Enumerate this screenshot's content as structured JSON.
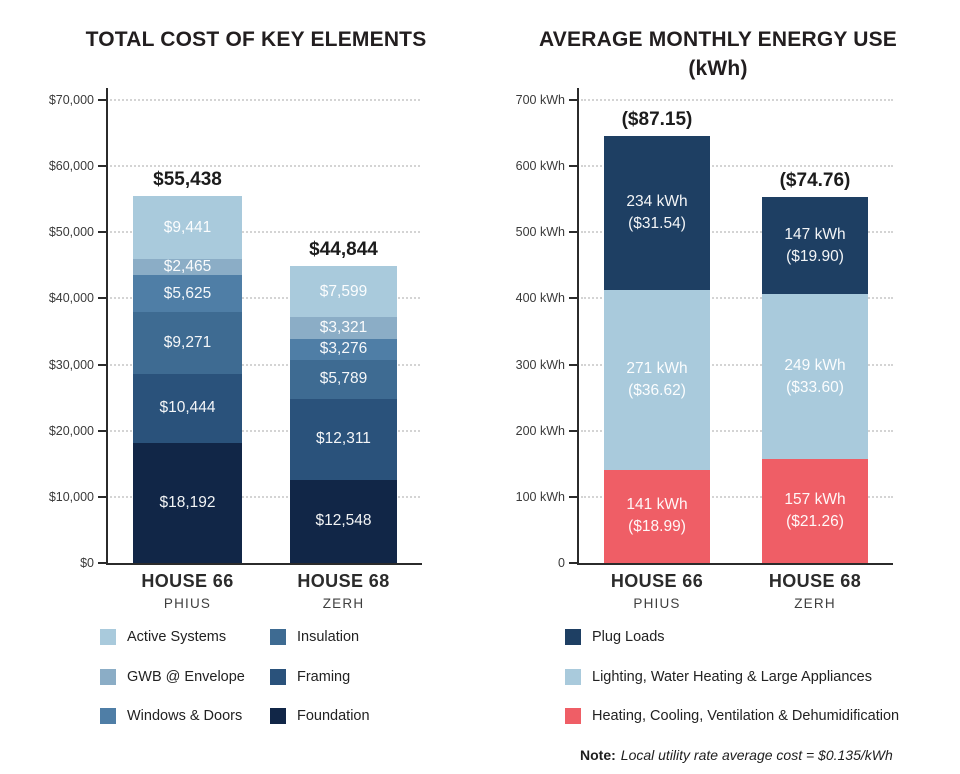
{
  "chart_data": [
    {
      "type": "bar",
      "stacked": true,
      "title": "TOTAL COST OF KEY ELEMENTS",
      "categories": [
        "HOUSE 66",
        "HOUSE 68"
      ],
      "category_subtitles": [
        "PHIUS",
        "ZERH"
      ],
      "ylim": [
        0,
        70000
      ],
      "ytick_values": [
        70000,
        60000,
        50000,
        40000,
        30000,
        20000,
        10000,
        0
      ],
      "ytick_labels": [
        "$70,000",
        "$60,000",
        "$50,000",
        "$40,000",
        "$30,000",
        "$20,000",
        "$10,000",
        "$0"
      ],
      "grid": "dotted-horizontal",
      "legend_position": "bottom",
      "totals": {
        "values": [
          55438,
          44844
        ],
        "labels": [
          "$55,438",
          "$44,844"
        ]
      },
      "series": [
        {
          "name": "Foundation",
          "color": "#112647",
          "values": [
            18192,
            12548
          ],
          "labels": [
            "$18,192",
            "$12,548"
          ]
        },
        {
          "name": "Framing",
          "color": "#2a527b",
          "values": [
            10444,
            12311
          ],
          "labels": [
            "$10,444",
            "$12,311"
          ]
        },
        {
          "name": "Insulation",
          "color": "#3e6b92",
          "values": [
            9271,
            5789
          ],
          "labels": [
            "$9,271",
            "$5,789"
          ]
        },
        {
          "name": "Windows & Doors",
          "color": "#4f7ea6",
          "values": [
            5625,
            3276
          ],
          "labels": [
            "$5,625",
            "$3,276"
          ]
        },
        {
          "name": "GWB @ Envelope",
          "color": "#8badc6",
          "values": [
            2465,
            3321
          ],
          "labels": [
            "$2,465",
            "$3,321"
          ]
        },
        {
          "name": "Active Systems",
          "color": "#a9cadc",
          "values": [
            9441,
            7599
          ],
          "labels": [
            "$9,441",
            "$7,599"
          ]
        }
      ],
      "legend": [
        {
          "label": "Active Systems",
          "color": "#a9cadc"
        },
        {
          "label": "Insulation",
          "color": "#3e6b92"
        },
        {
          "label": "GWB @ Envelope",
          "color": "#8badc6"
        },
        {
          "label": "Framing",
          "color": "#2a527b"
        },
        {
          "label": "Windows & Doors",
          "color": "#4f7ea6"
        },
        {
          "label": "Foundation",
          "color": "#112647"
        }
      ]
    },
    {
      "type": "bar",
      "stacked": true,
      "title": "AVERAGE MONTHLY ENERGY USE",
      "title_line2": "(kWh)",
      "categories": [
        "HOUSE 66",
        "HOUSE 68"
      ],
      "category_subtitles": [
        "PHIUS",
        "ZERH"
      ],
      "ylim": [
        0,
        700
      ],
      "ytick_values": [
        700,
        600,
        500,
        400,
        300,
        200,
        100,
        0
      ],
      "ytick_labels": [
        "700 kWh",
        "600 kWh",
        "500 kWh",
        "400 kWh",
        "300 kWh",
        "200 kWh",
        "100 kWh",
        "0"
      ],
      "grid": "dotted-horizontal",
      "legend_position": "bottom",
      "totals": {
        "values": [
          646,
          553
        ],
        "labels": [
          "($87.15)",
          "($74.76)"
        ]
      },
      "series": [
        {
          "name": "Heating, Cooling, Ventilation & Dehumidification",
          "color": "#ef5e66",
          "values": [
            141,
            157
          ],
          "labels": [
            "141 kWh\n($18.99)",
            "157 kWh\n($21.26)"
          ]
        },
        {
          "name": "Lighting, Water Heating & Large Appliances",
          "color": "#a9cadc",
          "values": [
            271,
            249
          ],
          "labels": [
            "271 kWh\n($36.62)",
            "249 kWh\n($33.60)"
          ]
        },
        {
          "name": "Plug Loads",
          "color": "#1e3f63",
          "values": [
            234,
            147
          ],
          "labels": [
            "234 kWh\n($31.54)",
            "147 kWh\n($19.90)"
          ]
        }
      ],
      "legend": [
        {
          "label": "Plug Loads",
          "color": "#1e3f63"
        },
        {
          "label": "Lighting, Water Heating & Large Appliances",
          "color": "#a9cadc"
        },
        {
          "label": "Heating, Cooling, Ventilation & Dehumidification",
          "color": "#ef5e66"
        }
      ]
    }
  ],
  "note": {
    "prefix": "Note:",
    "text": "Local utility rate average cost = $0.135/kWh"
  },
  "colors": {
    "axis": "#2b2b2b",
    "gridline": "#d4d4d4",
    "title_text": "#221e1f",
    "segment_text": "#ffffff",
    "background": "#ffffff"
  }
}
